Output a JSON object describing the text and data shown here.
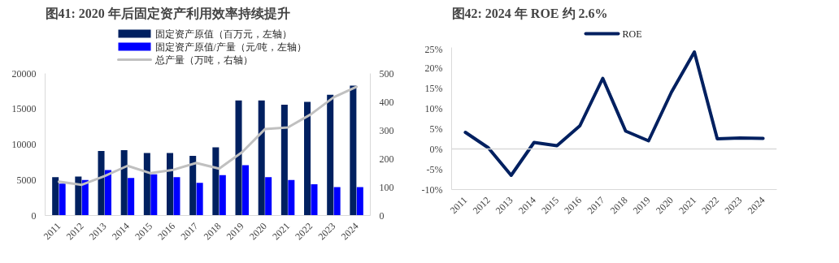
{
  "chart_data": [
    {
      "type": "bar",
      "title": "图41: 2020 年后固定资产利用效率持续提升",
      "categories": [
        "2011",
        "2012",
        "2013",
        "2014",
        "2015",
        "2016",
        "2017",
        "2018",
        "2019",
        "2020",
        "2021",
        "2022",
        "2023",
        "2024"
      ],
      "series": [
        {
          "name": "固定资产原值（百万元，左轴）",
          "color": "#002060",
          "values": [
            5400,
            5500,
            9100,
            9200,
            8800,
            8800,
            8400,
            9600,
            16200,
            16200,
            15600,
            16000,
            17000,
            18300
          ]
        },
        {
          "name": "固定资产原值/产量（元/吨，左轴）",
          "color": "#0000ff",
          "values": [
            4500,
            5000,
            6400,
            5300,
            5800,
            5400,
            4600,
            5700,
            7100,
            5400,
            5000,
            4400,
            4000,
            4000
          ]
        },
        {
          "name": "总产量（万吨，右轴）",
          "type": "line",
          "axis": "y2",
          "color": "#c0c0c0",
          "values": [
            119,
            108,
            139,
            175,
            149,
            161,
            185,
            165,
            223,
            304,
            310,
            356,
            416,
            453
          ]
        }
      ],
      "ylim": [
        0,
        20000
      ],
      "yticks": [
        0,
        5000,
        10000,
        15000,
        20000
      ],
      "y2lim": [
        0,
        500
      ],
      "y2ticks": [
        0,
        100,
        200,
        300,
        400,
        500
      ],
      "legend": "top",
      "grid": false
    },
    {
      "type": "line",
      "title": "图42: 2024 年 ROE 约 2.6%",
      "categories": [
        "2011",
        "2012",
        "2013",
        "2014",
        "2015",
        "2016",
        "2017",
        "2018",
        "2019",
        "2020",
        "2021",
        "2022",
        "2023",
        "2024"
      ],
      "series": [
        {
          "name": "ROE",
          "color": "#002060",
          "values": [
            4.1,
            0.3,
            -6.5,
            1.6,
            0.8,
            5.7,
            17.4,
            4.4,
            2.0,
            14.0,
            23.9,
            2.5,
            2.7,
            2.6
          ]
        }
      ],
      "ylim": [
        -10,
        25
      ],
      "yticks": [
        {
          "value": -10,
          "label": "-10%"
        },
        {
          "value": -5,
          "label": "-5%"
        },
        {
          "value": 0,
          "label": "0%"
        },
        {
          "value": 5,
          "label": "5%"
        },
        {
          "value": 10,
          "label": "10%"
        },
        {
          "value": 15,
          "label": "15%"
        },
        {
          "value": 20,
          "label": "20%"
        },
        {
          "value": 25,
          "label": "25%"
        }
      ],
      "ref_lines": [
        {
          "axis": "y",
          "value": 0,
          "color": "#d9d9d9"
        }
      ],
      "legend": "top",
      "grid": false
    }
  ]
}
